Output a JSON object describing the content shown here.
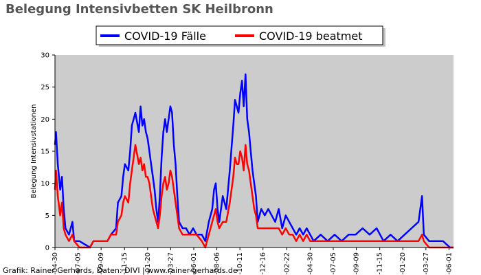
{
  "chart_data": {
    "type": "line",
    "title": "Belegung Intensivbetten SK Heilbronn",
    "ylabel": "Belegung Intensivstationen",
    "xlabel": "",
    "ylim": [
      0,
      30
    ],
    "yticks": [
      0,
      5,
      10,
      15,
      20,
      25,
      30
    ],
    "xtick_labels": [
      "-04-30",
      "-07-05",
      "-09-09",
      "-11-15",
      "-01-20",
      "-03-27",
      "-06-01",
      "-08-06",
      "-10-11",
      "-12-16",
      "-02-22",
      "-04-30",
      "-07-05",
      "-09-09",
      "-11-15",
      "-01-20",
      "-03-27",
      "-06-01"
    ],
    "x_index_range": [
      0,
      1140
    ],
    "xtick_indices": [
      0,
      66,
      132,
      199,
      265,
      331,
      397,
      463,
      529,
      595,
      663,
      730,
      796,
      862,
      929,
      995,
      1061,
      1127
    ],
    "legend_position": "top-center",
    "grid": false,
    "background": "#cccccc",
    "series": [
      {
        "name": "COVID-19 Fälle",
        "color": "#0000ff",
        "points": [
          [
            0,
            16
          ],
          [
            3,
            18
          ],
          [
            8,
            13
          ],
          [
            15,
            9
          ],
          [
            20,
            11
          ],
          [
            25,
            6
          ],
          [
            30,
            3
          ],
          [
            40,
            2
          ],
          [
            50,
            4
          ],
          [
            55,
            1
          ],
          [
            70,
            1
          ],
          [
            100,
            0
          ],
          [
            110,
            1
          ],
          [
            130,
            1
          ],
          [
            150,
            1
          ],
          [
            160,
            2
          ],
          [
            175,
            3
          ],
          [
            180,
            7
          ],
          [
            190,
            8
          ],
          [
            195,
            11
          ],
          [
            200,
            13
          ],
          [
            210,
            12
          ],
          [
            215,
            15
          ],
          [
            220,
            19
          ],
          [
            225,
            20
          ],
          [
            230,
            21
          ],
          [
            240,
            18
          ],
          [
            245,
            22
          ],
          [
            250,
            19
          ],
          [
            255,
            20
          ],
          [
            260,
            18
          ],
          [
            265,
            17
          ],
          [
            270,
            15
          ],
          [
            275,
            13
          ],
          [
            280,
            11
          ],
          [
            285,
            9
          ],
          [
            290,
            6
          ],
          [
            295,
            4
          ],
          [
            300,
            8
          ],
          [
            305,
            14
          ],
          [
            310,
            18
          ],
          [
            315,
            20
          ],
          [
            320,
            18
          ],
          [
            325,
            20
          ],
          [
            330,
            22
          ],
          [
            335,
            21
          ],
          [
            340,
            16
          ],
          [
            345,
            13
          ],
          [
            350,
            8
          ],
          [
            355,
            4
          ],
          [
            365,
            3
          ],
          [
            375,
            3
          ],
          [
            385,
            2
          ],
          [
            395,
            3
          ],
          [
            405,
            2
          ],
          [
            420,
            2
          ],
          [
            430,
            1
          ],
          [
            440,
            4
          ],
          [
            450,
            6
          ],
          [
            455,
            9
          ],
          [
            460,
            10
          ],
          [
            465,
            6
          ],
          [
            470,
            4
          ],
          [
            480,
            8
          ],
          [
            490,
            6
          ],
          [
            500,
            12
          ],
          [
            510,
            19
          ],
          [
            515,
            23
          ],
          [
            520,
            22
          ],
          [
            525,
            21
          ],
          [
            530,
            24
          ],
          [
            535,
            26
          ],
          [
            540,
            22
          ],
          [
            545,
            27
          ],
          [
            550,
            20
          ],
          [
            555,
            18
          ],
          [
            560,
            15
          ],
          [
            565,
            12
          ],
          [
            570,
            10
          ],
          [
            575,
            8
          ],
          [
            580,
            4
          ],
          [
            590,
            6
          ],
          [
            600,
            5
          ],
          [
            610,
            6
          ],
          [
            620,
            5
          ],
          [
            630,
            4
          ],
          [
            640,
            6
          ],
          [
            650,
            3
          ],
          [
            660,
            5
          ],
          [
            670,
            4
          ],
          [
            680,
            3
          ],
          [
            690,
            2
          ],
          [
            700,
            3
          ],
          [
            710,
            2
          ],
          [
            720,
            3
          ],
          [
            730,
            2
          ],
          [
            740,
            1
          ],
          [
            760,
            2
          ],
          [
            780,
            1
          ],
          [
            800,
            2
          ],
          [
            820,
            1
          ],
          [
            840,
            2
          ],
          [
            860,
            2
          ],
          [
            880,
            3
          ],
          [
            900,
            2
          ],
          [
            920,
            3
          ],
          [
            940,
            1
          ],
          [
            960,
            2
          ],
          [
            980,
            1
          ],
          [
            1000,
            2
          ],
          [
            1020,
            3
          ],
          [
            1040,
            4
          ],
          [
            1050,
            8
          ],
          [
            1055,
            2
          ],
          [
            1070,
            1
          ],
          [
            1090,
            1
          ],
          [
            1110,
            1
          ],
          [
            1130,
            0
          ],
          [
            1140,
            0
          ]
        ]
      },
      {
        "name": "COVID-19 beatmet",
        "color": "#ff0000",
        "points": [
          [
            0,
            9
          ],
          [
            3,
            12
          ],
          [
            8,
            8
          ],
          [
            15,
            5
          ],
          [
            20,
            7
          ],
          [
            25,
            3
          ],
          [
            30,
            2
          ],
          [
            40,
            1
          ],
          [
            50,
            2
          ],
          [
            55,
            1
          ],
          [
            70,
            0
          ],
          [
            100,
            0
          ],
          [
            110,
            1
          ],
          [
            130,
            1
          ],
          [
            150,
            1
          ],
          [
            160,
            2
          ],
          [
            175,
            2
          ],
          [
            180,
            4
          ],
          [
            190,
            5
          ],
          [
            195,
            7
          ],
          [
            200,
            8
          ],
          [
            210,
            7
          ],
          [
            215,
            10
          ],
          [
            220,
            12
          ],
          [
            225,
            14
          ],
          [
            230,
            16
          ],
          [
            240,
            13
          ],
          [
            245,
            14
          ],
          [
            250,
            12
          ],
          [
            255,
            13
          ],
          [
            260,
            11
          ],
          [
            265,
            11
          ],
          [
            270,
            10
          ],
          [
            275,
            8
          ],
          [
            280,
            6
          ],
          [
            285,
            5
          ],
          [
            290,
            4
          ],
          [
            295,
            3
          ],
          [
            300,
            5
          ],
          [
            305,
            8
          ],
          [
            310,
            10
          ],
          [
            315,
            11
          ],
          [
            320,
            9
          ],
          [
            325,
            10
          ],
          [
            330,
            12
          ],
          [
            335,
            11
          ],
          [
            340,
            9
          ],
          [
            345,
            7
          ],
          [
            350,
            5
          ],
          [
            355,
            3
          ],
          [
            365,
            2
          ],
          [
            375,
            2
          ],
          [
            385,
            2
          ],
          [
            395,
            2
          ],
          [
            405,
            2
          ],
          [
            420,
            1
          ],
          [
            430,
            0
          ],
          [
            440,
            2
          ],
          [
            450,
            4
          ],
          [
            455,
            5
          ],
          [
            460,
            6
          ],
          [
            465,
            4
          ],
          [
            470,
            3
          ],
          [
            480,
            4
          ],
          [
            490,
            4
          ],
          [
            500,
            7
          ],
          [
            510,
            11
          ],
          [
            515,
            14
          ],
          [
            520,
            13
          ],
          [
            525,
            13
          ],
          [
            530,
            15
          ],
          [
            535,
            14
          ],
          [
            540,
            12
          ],
          [
            545,
            16
          ],
          [
            550,
            13
          ],
          [
            555,
            12
          ],
          [
            560,
            10
          ],
          [
            565,
            8
          ],
          [
            570,
            6
          ],
          [
            575,
            5
          ],
          [
            580,
            3
          ],
          [
            590,
            3
          ],
          [
            600,
            3
          ],
          [
            610,
            3
          ],
          [
            620,
            3
          ],
          [
            630,
            3
          ],
          [
            640,
            3
          ],
          [
            650,
            2
          ],
          [
            660,
            3
          ],
          [
            670,
            2
          ],
          [
            680,
            2
          ],
          [
            690,
            1
          ],
          [
            700,
            2
          ],
          [
            710,
            1
          ],
          [
            720,
            2
          ],
          [
            730,
            1
          ],
          [
            740,
            1
          ],
          [
            760,
            1
          ],
          [
            780,
            1
          ],
          [
            800,
            1
          ],
          [
            820,
            1
          ],
          [
            840,
            1
          ],
          [
            860,
            1
          ],
          [
            880,
            1
          ],
          [
            900,
            1
          ],
          [
            920,
            1
          ],
          [
            940,
            1
          ],
          [
            960,
            1
          ],
          [
            980,
            1
          ],
          [
            1000,
            1
          ],
          [
            1020,
            1
          ],
          [
            1040,
            1
          ],
          [
            1050,
            2
          ],
          [
            1055,
            1
          ],
          [
            1070,
            0
          ],
          [
            1090,
            0
          ],
          [
            1110,
            0
          ],
          [
            1130,
            0
          ],
          [
            1140,
            0
          ]
        ]
      }
    ]
  },
  "footer": {
    "credit": "Grafik: Rainer Gerhards, Daten: DIVI | www.rainer-gerhards.de"
  }
}
